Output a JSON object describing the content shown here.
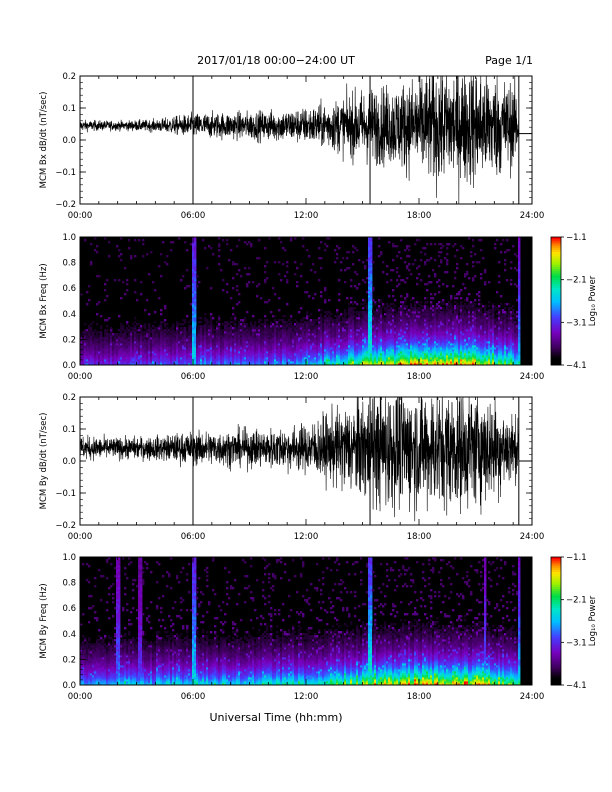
{
  "header": {
    "title": "2017/01/18  00:00−24:00 UT",
    "page": "Page 1/1"
  },
  "footer": {
    "xlabel": "Universal Time (hh:mm)"
  },
  "chart_data": [
    {
      "type": "line",
      "ylabel": "MCM Bx dB/dt (nT/sec)",
      "xlim": [
        0,
        24
      ],
      "ylim": [
        -0.2,
        0.2
      ],
      "x_ticks": [
        "00:00",
        "06:00",
        "12:00",
        "18:00",
        "24:00"
      ],
      "y_ticks": [
        "0.2",
        "0.1",
        "0.0",
        "−0.1",
        "−0.2"
      ],
      "envelope": {
        "x": [
          0,
          2,
          4,
          6,
          8,
          10,
          12,
          13,
          14,
          15,
          16,
          17,
          18,
          19,
          20,
          21,
          22,
          23,
          23.3
        ],
        "half_amplitude": [
          0.018,
          0.016,
          0.02,
          0.04,
          0.045,
          0.05,
          0.06,
          0.075,
          0.095,
          0.12,
          0.13,
          0.14,
          0.17,
          0.2,
          0.2,
          0.2,
          0.18,
          0.14,
          0.1
        ],
        "center": 0.045
      },
      "spikes": [
        {
          "x": 6.0,
          "y": [
            -0.2,
            0.2
          ]
        },
        {
          "x": 15.4,
          "y": [
            -0.2,
            0.2
          ]
        },
        {
          "x": 23.3,
          "y": [
            -0.2,
            0.2
          ]
        }
      ],
      "data_end_hour": 23.3,
      "end_level": 0.02
    },
    {
      "type": "heatmap",
      "ylabel": "MCM Bx Freq (Hz)",
      "xlim": [
        0,
        24
      ],
      "ylim": [
        0,
        1
      ],
      "x_ticks": [
        "00:00",
        "06:00",
        "12:00",
        "18:00",
        "24:00"
      ],
      "y_ticks": [
        "1.0",
        "0.8",
        "0.6",
        "0.4",
        "0.2",
        "0.0"
      ],
      "colorbar": {
        "label": "Log₁₀ Power",
        "ticks": [
          "−1.1",
          "−2.1",
          "−3.1",
          "−4.1"
        ],
        "range": [
          -4.1,
          -1.1
        ]
      },
      "activity_by_hour": [
        0.35,
        0.35,
        0.4,
        0.38,
        0.42,
        0.45,
        0.5,
        0.45,
        0.45,
        0.48,
        0.5,
        0.52,
        0.6,
        0.7,
        0.8,
        0.9,
        0.95,
        1.0,
        1.0,
        1.0,
        1.0,
        0.95,
        0.8,
        0.6
      ],
      "stripes": [
        {
          "x": 6.05,
          "strength": 0.9
        },
        {
          "x": 15.4,
          "strength": 1.0
        },
        {
          "x": 23.3,
          "strength": 0.8
        }
      ],
      "data_end_hour": 23.4
    },
    {
      "type": "line",
      "ylabel": "MCM By dB/dt (nT/sec)",
      "xlim": [
        0,
        24
      ],
      "ylim": [
        -0.2,
        0.2
      ],
      "x_ticks": [
        "00:00",
        "06:00",
        "12:00",
        "18:00",
        "24:00"
      ],
      "y_ticks": [
        "0.2",
        "0.1",
        "0.0",
        "−0.1",
        "−0.2"
      ],
      "envelope": {
        "x": [
          0,
          2,
          4,
          6,
          8,
          10,
          12,
          13,
          14,
          15,
          16,
          17,
          18,
          19,
          20,
          21,
          22,
          23,
          23.3
        ],
        "half_amplitude": [
          0.04,
          0.035,
          0.04,
          0.055,
          0.06,
          0.065,
          0.08,
          0.11,
          0.14,
          0.17,
          0.2,
          0.2,
          0.2,
          0.2,
          0.2,
          0.19,
          0.17,
          0.12,
          0.08
        ],
        "center": 0.04
      },
      "spikes": [
        {
          "x": 6.0,
          "y": [
            -0.2,
            0.2
          ]
        },
        {
          "x": 15.4,
          "y": [
            -0.2,
            0.2
          ]
        },
        {
          "x": 23.3,
          "y": [
            -0.2,
            0.2
          ]
        }
      ],
      "data_end_hour": 23.3,
      "end_level": 0.0
    },
    {
      "type": "heatmap",
      "ylabel": "MCM By Freq (Hz)",
      "xlim": [
        0,
        24
      ],
      "ylim": [
        0,
        1
      ],
      "x_ticks": [
        "00:00",
        "06:00",
        "12:00",
        "18:00",
        "24:00"
      ],
      "y_ticks": [
        "1.0",
        "0.8",
        "0.6",
        "0.4",
        "0.2",
        "0.0"
      ],
      "colorbar": {
        "label": "Log₁₀ Power",
        "ticks": [
          "−1.1",
          "−2.1",
          "−3.1",
          "−4.1"
        ],
        "range": [
          -4.1,
          -1.1
        ]
      },
      "activity_by_hour": [
        0.5,
        0.5,
        0.6,
        0.55,
        0.6,
        0.6,
        0.65,
        0.6,
        0.6,
        0.62,
        0.65,
        0.7,
        0.72,
        0.8,
        0.85,
        0.9,
        0.95,
        1.0,
        1.0,
        1.0,
        1.0,
        0.95,
        0.85,
        0.7
      ],
      "stripes": [
        {
          "x": 2.0,
          "strength": 0.7
        },
        {
          "x": 3.2,
          "strength": 0.6
        },
        {
          "x": 6.05,
          "strength": 0.9
        },
        {
          "x": 15.4,
          "strength": 1.0
        },
        {
          "x": 21.5,
          "strength": 0.7
        },
        {
          "x": 23.3,
          "strength": 0.8
        }
      ],
      "data_end_hour": 23.4
    }
  ]
}
